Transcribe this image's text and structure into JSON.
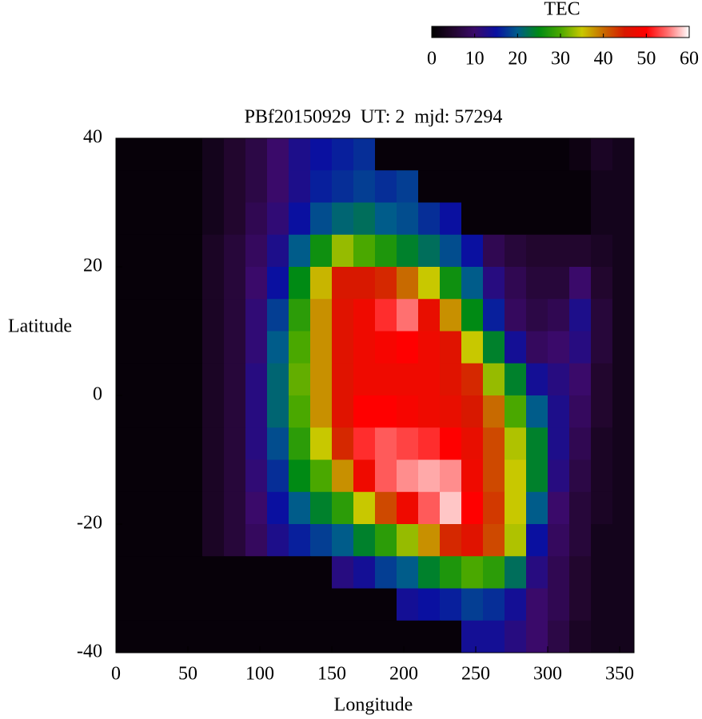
{
  "chart_data": {
    "type": "heatmap",
    "title": "PBf20150929  UT: 2  mjd: 57294",
    "xlabel": "Longitude",
    "ylabel": "Latitude",
    "xlim": [
      0,
      360
    ],
    "ylim": [
      -40,
      40
    ],
    "xticks": [
      0,
      50,
      100,
      150,
      200,
      250,
      300,
      350
    ],
    "yticks": [
      -40,
      -20,
      0,
      20,
      40
    ],
    "x": [
      7.5,
      22.5,
      37.5,
      52.5,
      67.5,
      82.5,
      97.5,
      112.5,
      127.5,
      142.5,
      157.5,
      172.5,
      187.5,
      202.5,
      217.5,
      232.5,
      247.5,
      262.5,
      277.5,
      292.5,
      307.5,
      322.5,
      337.5,
      352.5
    ],
    "y": [
      37.5,
      32.5,
      27.5,
      22.5,
      17.5,
      12.5,
      7.5,
      2.5,
      -2.5,
      -7.5,
      -12.5,
      -17.5,
      -22.5,
      -27.5,
      -32.5,
      -37.5
    ],
    "z": [
      [
        1,
        1,
        1,
        1,
        3,
        5,
        7,
        10,
        13,
        15,
        16,
        17,
        1,
        1,
        1,
        1,
        1,
        1,
        1,
        1,
        1,
        2,
        4,
        3
      ],
      [
        1,
        1,
        1,
        1,
        3,
        5,
        7,
        10,
        13,
        16,
        17,
        18,
        17,
        18,
        1,
        1,
        1,
        1,
        1,
        1,
        1,
        1,
        3,
        3
      ],
      [
        1,
        1,
        1,
        1,
        3,
        5,
        8,
        11,
        15,
        19,
        21,
        22,
        20,
        19,
        17,
        15,
        1,
        1,
        1,
        1,
        1,
        1,
        3,
        3
      ],
      [
        1,
        1,
        1,
        1,
        4,
        6,
        9,
        13,
        20,
        26,
        33,
        30,
        27,
        24,
        22,
        19,
        15,
        8,
        6,
        5,
        5,
        5,
        4,
        3
      ],
      [
        1,
        1,
        1,
        1,
        4,
        6,
        10,
        15,
        25,
        36,
        45,
        45,
        44,
        40,
        35,
        26,
        20,
        12,
        8,
        6,
        6,
        10,
        5,
        3
      ],
      [
        1,
        1,
        1,
        1,
        4,
        6,
        11,
        18,
        28,
        38,
        46,
        48,
        52,
        55,
        47,
        38,
        25,
        16,
        9,
        7,
        8,
        13,
        6,
        3
      ],
      [
        1,
        1,
        1,
        1,
        4,
        6,
        11,
        20,
        30,
        38,
        46,
        48,
        49,
        50,
        48,
        46,
        35,
        24,
        14,
        9,
        10,
        12,
        6,
        3
      ],
      [
        1,
        1,
        1,
        1,
        4,
        6,
        12,
        21,
        31,
        38,
        46,
        48,
        48,
        48,
        48,
        46,
        44,
        33,
        24,
        14,
        12,
        10,
        5,
        3
      ],
      [
        1,
        1,
        1,
        1,
        4,
        6,
        12,
        21,
        30,
        38,
        46,
        50,
        50,
        49,
        48,
        47,
        45,
        40,
        30,
        20,
        13,
        9,
        5,
        3
      ],
      [
        1,
        1,
        1,
        1,
        4,
        6,
        12,
        19,
        28,
        35,
        44,
        52,
        54,
        53,
        52,
        50,
        47,
        42,
        34,
        24,
        13,
        8,
        4,
        3
      ],
      [
        1,
        1,
        1,
        1,
        4,
        6,
        11,
        17,
        25,
        30,
        38,
        48,
        54,
        56,
        57,
        56,
        48,
        42,
        35,
        24,
        12,
        7,
        4,
        3
      ],
      [
        1,
        1,
        1,
        1,
        4,
        6,
        10,
        15,
        20,
        24,
        28,
        35,
        42,
        48,
        54,
        58,
        50,
        43,
        35,
        20,
        10,
        6,
        4,
        3
      ],
      [
        1,
        1,
        1,
        1,
        4,
        6,
        9,
        13,
        16,
        18,
        20,
        24,
        28,
        33,
        38,
        44,
        46,
        42,
        34,
        15,
        9,
        6,
        3,
        3
      ],
      [
        1,
        1,
        1,
        1,
        1,
        1,
        1,
        1,
        1,
        1,
        12,
        14,
        18,
        20,
        24,
        27,
        30,
        28,
        22,
        12,
        8,
        5,
        3,
        3
      ],
      [
        1,
        1,
        1,
        1,
        1,
        1,
        1,
        1,
        1,
        1,
        1,
        1,
        1,
        14,
        15,
        16,
        18,
        17,
        14,
        10,
        8,
        5,
        3,
        3
      ],
      [
        1,
        1,
        1,
        1,
        1,
        1,
        1,
        1,
        1,
        1,
        1,
        1,
        1,
        1,
        1,
        1,
        14,
        14,
        12,
        10,
        7,
        4,
        3,
        3
      ]
    ],
    "colorbar": {
      "title": "TEC",
      "lim": [
        0,
        60
      ],
      "ticks": [
        0,
        10,
        20,
        30,
        40,
        50,
        60
      ]
    },
    "colormap": [
      {
        "value": 0,
        "color": "#000000"
      },
      {
        "value": 5,
        "color": "#22062e"
      },
      {
        "value": 10,
        "color": "#3a0a6a"
      },
      {
        "value": 15,
        "color": "#0a10a0"
      },
      {
        "value": 20,
        "color": "#005c8a"
      },
      {
        "value": 25,
        "color": "#008a14"
      },
      {
        "value": 30,
        "color": "#4aa800"
      },
      {
        "value": 35,
        "color": "#c8c800"
      },
      {
        "value": 40,
        "color": "#c86a00"
      },
      {
        "value": 45,
        "color": "#d81800"
      },
      {
        "value": 50,
        "color": "#ff0000"
      },
      {
        "value": 55,
        "color": "#ff7070"
      },
      {
        "value": 60,
        "color": "#ffffff"
      }
    ]
  }
}
